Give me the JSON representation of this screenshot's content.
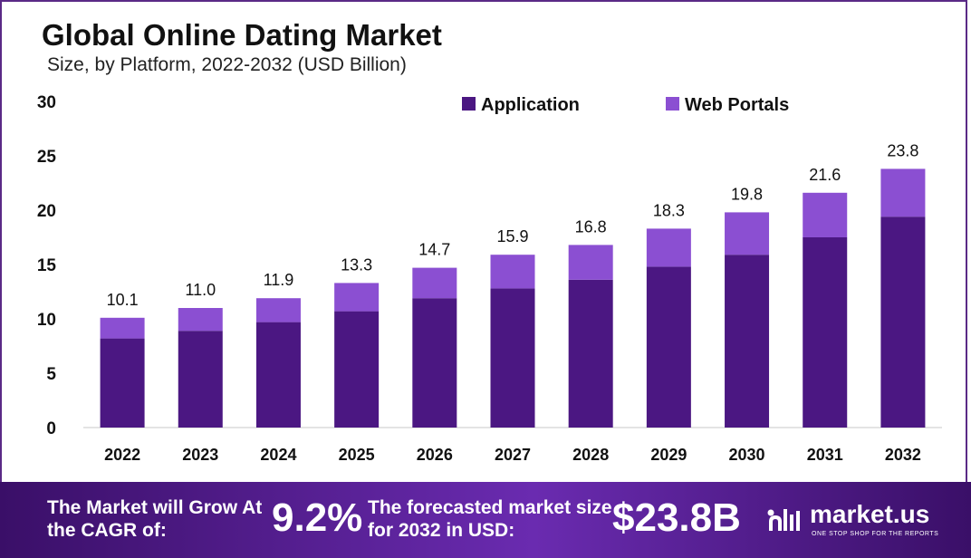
{
  "chart_data": {
    "type": "bar",
    "stacked": true,
    "title": "Global Online Dating Market",
    "subtitle": "Size, by Platform, 2022-2032 (USD Billion)",
    "xlabel": "",
    "ylabel": "",
    "ylim": [
      0,
      30
    ],
    "yticks": [
      0,
      5,
      10,
      15,
      20,
      25,
      30
    ],
    "grid": false,
    "legend_position": "top-right",
    "categories": [
      "2022",
      "2023",
      "2024",
      "2025",
      "2026",
      "2027",
      "2028",
      "2029",
      "2030",
      "2031",
      "2032"
    ],
    "series": [
      {
        "name": "Application",
        "color": "#4b1782",
        "values": [
          8.2,
          8.9,
          9.7,
          10.7,
          11.9,
          12.8,
          13.6,
          14.8,
          15.9,
          17.5,
          19.4
        ]
      },
      {
        "name": "Web Portals",
        "color": "#8b4fd2",
        "values": [
          1.9,
          2.1,
          2.2,
          2.6,
          2.8,
          3.1,
          3.2,
          3.5,
          3.9,
          4.1,
          4.4
        ]
      }
    ],
    "totals_labels": [
      "10.1",
      "11.0",
      "11.9",
      "13.3",
      "14.7",
      "15.9",
      "16.8",
      "18.3",
      "19.8",
      "21.6",
      "23.8"
    ]
  },
  "footer": {
    "cagr_label": "The Market will Grow At the CAGR of:",
    "cagr_value": "9.2%",
    "size_label": "The forecasted market size for 2032 in USD:",
    "size_value": "$23.8B",
    "logo_text": "market.us",
    "logo_tagline": "ONE STOP SHOP FOR THE REPORTS",
    "logo_icon": "market-us-logo-icon"
  }
}
